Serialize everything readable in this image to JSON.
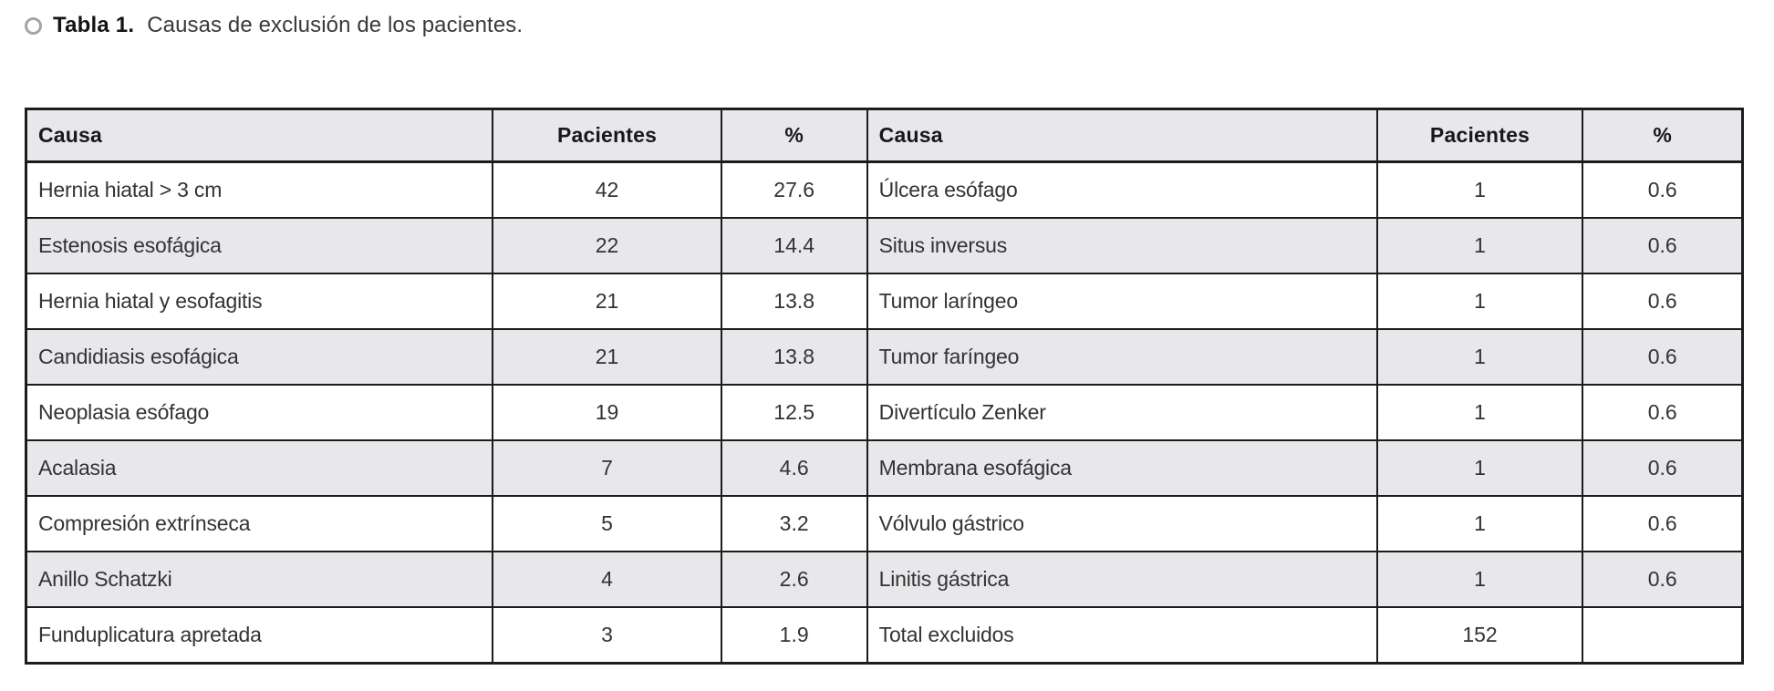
{
  "caption": {
    "marker_icon": "circle-outline",
    "prefix": "Tabla 1.",
    "text": "Causas de exclusión de los pacientes."
  },
  "table": {
    "columns": [
      "Causa",
      "Pacientes",
      "%",
      "Causa",
      "Pacientes",
      "%"
    ],
    "rows": [
      {
        "left": {
          "causa": "Hernia hiatal > 3 cm",
          "pacientes": "42",
          "pct": "27.6"
        },
        "right": {
          "causa": "Úlcera esófago",
          "pacientes": "1",
          "pct": "0.6"
        }
      },
      {
        "left": {
          "causa": "Estenosis esofágica",
          "pacientes": "22",
          "pct": "14.4"
        },
        "right": {
          "causa": "Situs inversus",
          "pacientes": "1",
          "pct": "0.6"
        }
      },
      {
        "left": {
          "causa": "Hernia hiatal y esofagitis",
          "pacientes": "21",
          "pct": "13.8"
        },
        "right": {
          "causa": "Tumor laríngeo",
          "pacientes": "1",
          "pct": "0.6"
        }
      },
      {
        "left": {
          "causa": "Candidiasis esofágica",
          "pacientes": "21",
          "pct": "13.8"
        },
        "right": {
          "causa": "Tumor faríngeo",
          "pacientes": "1",
          "pct": "0.6"
        }
      },
      {
        "left": {
          "causa": "Neoplasia esófago",
          "pacientes": "19",
          "pct": "12.5"
        },
        "right": {
          "causa": "Divertículo Zenker",
          "pacientes": "1",
          "pct": "0.6"
        }
      },
      {
        "left": {
          "causa": "Acalasia",
          "pacientes": "7",
          "pct": "4.6"
        },
        "right": {
          "causa": "Membrana esofágica",
          "pacientes": "1",
          "pct": "0.6"
        }
      },
      {
        "left": {
          "causa": "Compresión extrínseca",
          "pacientes": "5",
          "pct": "3.2"
        },
        "right": {
          "causa": "Vólvulo gástrico",
          "pacientes": "1",
          "pct": "0.6"
        }
      },
      {
        "left": {
          "causa": "Anillo Schatzki",
          "pacientes": "4",
          "pct": "2.6"
        },
        "right": {
          "causa": "Linitis gástrica",
          "pacientes": "1",
          "pct": "0.6"
        }
      },
      {
        "left": {
          "causa": "Funduplicatura apretada",
          "pacientes": "3",
          "pct": "1.9"
        },
        "right": {
          "causa": "Total excluidos",
          "pacientes": "152",
          "pct": ""
        }
      }
    ],
    "colors": {
      "header_bg": "#e8e8ea",
      "row_alt_bg": "#e8e8ea",
      "row_bg": "#ffffff",
      "border": "#1c1c1e",
      "text": "#333335"
    }
  }
}
